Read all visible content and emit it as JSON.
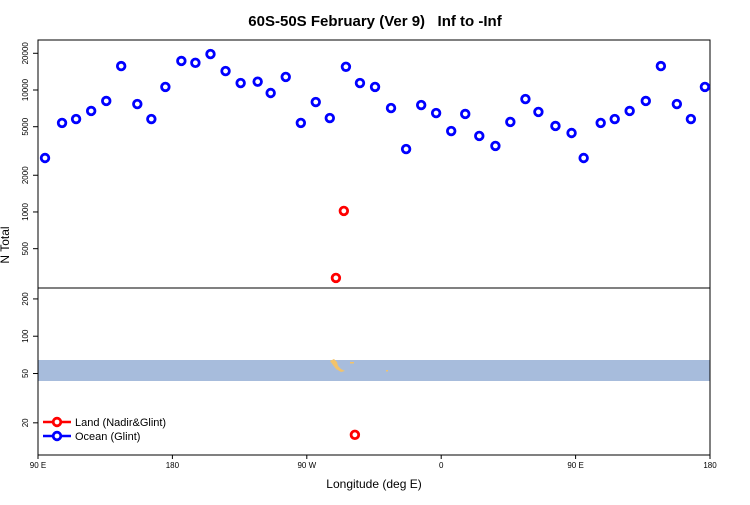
{
  "chart_data": [
    {
      "type": "scatter",
      "title": "60S-50S February (Ver 9)   Inf to -Inf",
      "y_label": "N Total",
      "log_y": true,
      "xlim": [
        90,
        540
      ],
      "ylim": [
        238,
        25700
      ],
      "yticks": [
        500,
        1000,
        2000,
        5000,
        10000,
        20000
      ],
      "series": [
        {
          "name": "Land (Nadir&Glint)",
          "color": "#ff0000",
          "x": [
            294.8,
            289.5
          ],
          "values": [
            1020,
            288
          ]
        },
        {
          "name": "Ocean (Glint)",
          "color": "#0000ff",
          "x": [
            94.7,
            106.1,
            115.5,
            125.6,
            135.7,
            145.7,
            156.5,
            165.9,
            175.3,
            186.0,
            195.4,
            205.5,
            215.6,
            225.7,
            237.1,
            245.8,
            255.9,
            266.0,
            276.0,
            285.4,
            296.2,
            305.6,
            315.7,
            326.4,
            336.5,
            346.6,
            356.6,
            366.7,
            376.1,
            385.5,
            396.3,
            406.3,
            416.4,
            425.1,
            436.5,
            447.3,
            455.4,
            466.8,
            476.2,
            486.2,
            497.0,
            507.1,
            517.8,
            527.2,
            536.6
          ],
          "values": [
            2770,
            5370,
            5780,
            6730,
            8130,
            15700,
            7670,
            5780,
            10600,
            17300,
            16700,
            19700,
            14300,
            11400,
            11700,
            9450,
            12800,
            5370,
            7970,
            5890,
            15500,
            11400,
            10600,
            7110,
            3280,
            7530,
            6470,
            4610,
            6360,
            4200,
            3480,
            5470,
            8430,
            6610,
            5070,
            4440,
            2770,
            5370,
            5780,
            6730,
            8130,
            15700,
            7670,
            5780,
            10600
          ]
        }
      ]
    },
    {
      "type": "scatter",
      "x_label": "Longitude (deg E)",
      "log_y": true,
      "legend": "lower left",
      "xlim": [
        90,
        540
      ],
      "ylim": [
        11,
        245
      ],
      "xticks": [
        {
          "value": 90,
          "label": "90 E"
        },
        180,
        {
          "value": 270,
          "label": "90 W"
        },
        {
          "value": 360,
          "label": "0"
        },
        {
          "value": 450,
          "label": "90 E"
        },
        {
          "value": 540,
          "label": "180"
        }
      ],
      "yticks": [
        20,
        50,
        100,
        200
      ],
      "series": [
        {
          "color": "#ff0000",
          "x": [
            302.2
          ],
          "values": [
            16.0
          ]
        }
      ]
    }
  ]
}
